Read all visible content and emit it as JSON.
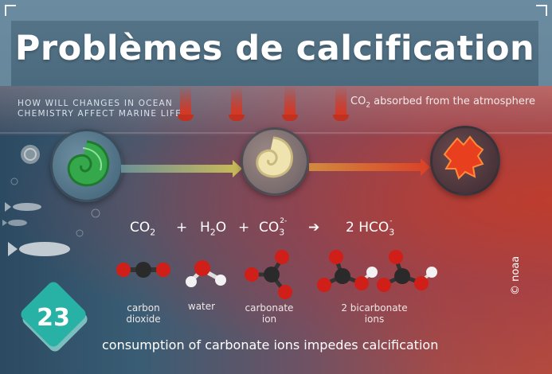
{
  "title": "Problèmes de calcification",
  "scene": {
    "question_line1": "HOW WILL CHANGES IN OCEAN",
    "question_line2": "CHEMISTRY AFFECT MARINE LIFE?",
    "co2_absorbed_prefix": "CO",
    "co2_absorbed_sub": "2",
    "co2_absorbed_suffix": " absorbed from the atmosphere"
  },
  "equation": {
    "co2": "CO",
    "co2_sub": "2",
    "plus1": "+",
    "h2o_h": "H",
    "h2o_sub": "2",
    "h2o_o": "O",
    "plus2": "+",
    "co3": "CO",
    "co3_sub": "3",
    "co3_sup": "2-",
    "arrow": "➔",
    "hco3": "2 HCO",
    "hco3_sub": "3",
    "hco3_sup": "-"
  },
  "molecules": [
    {
      "line1": "carbon",
      "line2": "dioxide"
    },
    {
      "line1": "water",
      "line2": ""
    },
    {
      "line1": "carbonate",
      "line2": "ion"
    },
    {
      "line1": "2 bicarbonate",
      "line2": "ions"
    }
  ],
  "footer": "consumption of carbonate ions impedes calcification",
  "credit": "© noaa",
  "badge": "23",
  "colors": {
    "title_band": "#4f6e82",
    "badge": "#28b2a6",
    "oxygen": "#d01e18",
    "carbon": "#2a2a2a",
    "hydrogen": "#f2f2f2",
    "arrow_red": "#d23a28"
  }
}
